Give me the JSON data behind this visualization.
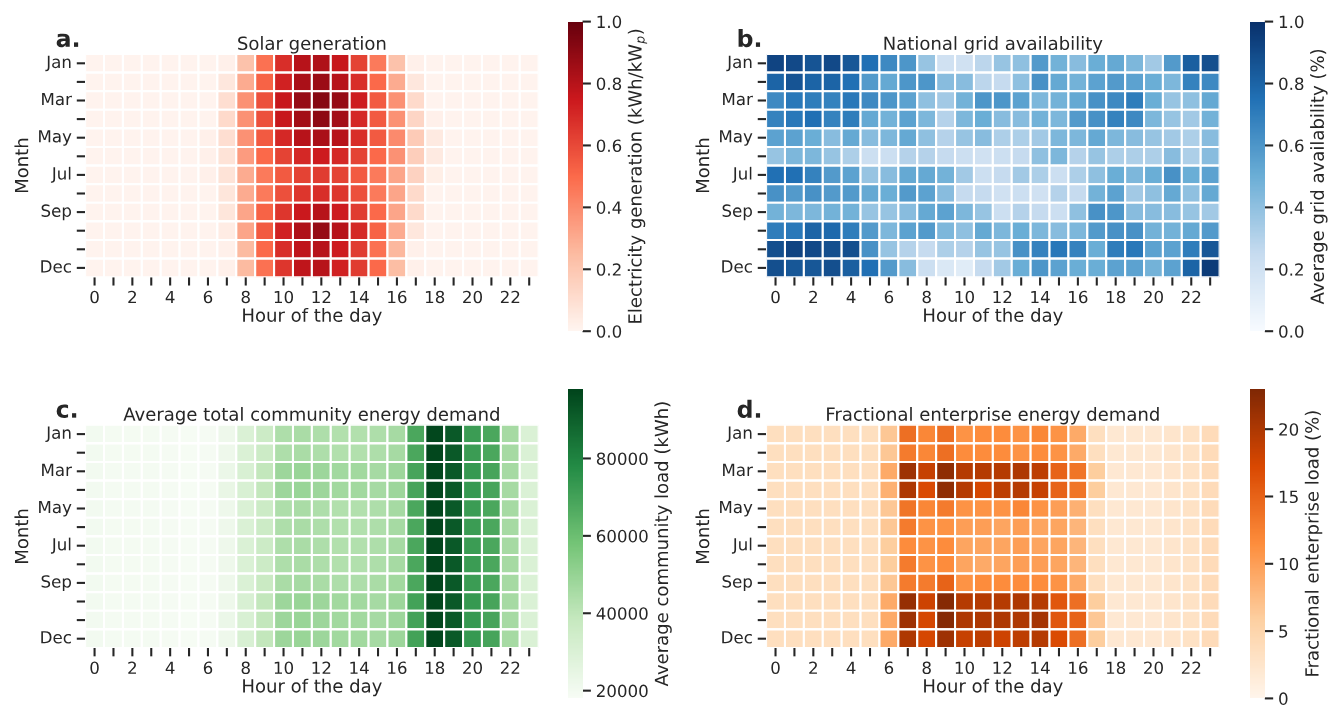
{
  "chart_data": [
    {
      "type": "heatmap",
      "title": "Solar generation",
      "xlabel": "Hour of the day",
      "ylabel": "Month",
      "clabel": "Electricity generation (kWh/kW$_{p}$)",
      "annotations": [
        "a."
      ],
      "categories": [
        "0",
        null,
        "2",
        null,
        "4",
        null,
        "6",
        null,
        "8",
        null,
        "10",
        null,
        "12",
        null,
        "14",
        null,
        "16",
        null,
        "18",
        null,
        "20",
        null,
        "22",
        null
      ],
      "y_categories": [
        "Jan",
        null,
        "Mar",
        null,
        "May",
        null,
        "Jul",
        null,
        "Sep",
        null,
        null,
        "Dec"
      ],
      "colors": [
        "#fff5f0",
        "#fcbba1",
        "#fb6a4a",
        "#cb181d",
        "#67000d"
      ],
      "clim": [
        0,
        1
      ],
      "cticks": [
        {
          "value": 0,
          "label": "0.0"
        },
        {
          "value": 0.2,
          "label": "0.2"
        },
        {
          "value": 0.4,
          "label": "0.4"
        },
        {
          "value": 0.6,
          "label": "0.6"
        },
        {
          "value": 0.8,
          "label": "0.8"
        },
        {
          "value": 1,
          "label": "1.0"
        }
      ],
      "cells": [
        [
          0.01,
          0.01,
          0.01,
          0.01,
          0.01,
          0.01,
          0.01,
          0.02,
          0.22,
          0.48,
          0.68,
          0.8,
          0.82,
          0.76,
          0.62,
          0.45,
          0.22,
          0.02,
          0.01,
          0.01,
          0.01,
          0.01,
          0.01,
          0.01
        ],
        [
          0.01,
          0.01,
          0.01,
          0.01,
          0.01,
          0.01,
          0.01,
          0.06,
          0.3,
          0.52,
          0.72,
          0.83,
          0.87,
          0.8,
          0.68,
          0.5,
          0.3,
          0.06,
          0.01,
          0.01,
          0.01,
          0.01,
          0.01,
          0.01
        ],
        [
          0.01,
          0.01,
          0.01,
          0.01,
          0.01,
          0.01,
          0.01,
          0.1,
          0.38,
          0.58,
          0.76,
          0.88,
          0.92,
          0.88,
          0.74,
          0.55,
          0.38,
          0.12,
          0.01,
          0.01,
          0.01,
          0.01,
          0.01,
          0.01
        ],
        [
          0.01,
          0.01,
          0.01,
          0.01,
          0.01,
          0.01,
          0.01,
          0.12,
          0.38,
          0.58,
          0.76,
          0.85,
          0.9,
          0.85,
          0.7,
          0.55,
          0.38,
          0.14,
          0.02,
          0.01,
          0.01,
          0.01,
          0.01,
          0.01
        ],
        [
          0.01,
          0.01,
          0.01,
          0.01,
          0.01,
          0.01,
          0.02,
          0.1,
          0.38,
          0.55,
          0.7,
          0.8,
          0.83,
          0.8,
          0.68,
          0.55,
          0.4,
          0.18,
          0.05,
          0.01,
          0.01,
          0.01,
          0.01,
          0.01
        ],
        [
          0.01,
          0.01,
          0.01,
          0.01,
          0.01,
          0.01,
          0.02,
          0.08,
          0.35,
          0.5,
          0.62,
          0.7,
          0.74,
          0.7,
          0.62,
          0.5,
          0.38,
          0.17,
          0.05,
          0.01,
          0.01,
          0.01,
          0.01,
          0.01
        ],
        [
          0.01,
          0.01,
          0.01,
          0.01,
          0.01,
          0.01,
          0.02,
          0.08,
          0.3,
          0.45,
          0.55,
          0.62,
          0.64,
          0.62,
          0.55,
          0.45,
          0.32,
          0.15,
          0.03,
          0.01,
          0.01,
          0.01,
          0.01,
          0.01
        ],
        [
          0.01,
          0.01,
          0.01,
          0.01,
          0.01,
          0.01,
          0.01,
          0.07,
          0.3,
          0.45,
          0.58,
          0.66,
          0.68,
          0.66,
          0.58,
          0.45,
          0.32,
          0.12,
          0.01,
          0.01,
          0.01,
          0.01,
          0.01,
          0.01
        ],
        [
          0.01,
          0.01,
          0.01,
          0.01,
          0.01,
          0.01,
          0.01,
          0.07,
          0.32,
          0.52,
          0.66,
          0.75,
          0.8,
          0.74,
          0.64,
          0.5,
          0.32,
          0.12,
          0.01,
          0.01,
          0.01,
          0.01,
          0.01,
          0.01
        ],
        [
          0.01,
          0.01,
          0.01,
          0.01,
          0.01,
          0.01,
          0.01,
          0.04,
          0.32,
          0.55,
          0.72,
          0.82,
          0.88,
          0.8,
          0.7,
          0.52,
          0.3,
          0.06,
          0.01,
          0.01,
          0.01,
          0.01,
          0.01,
          0.01
        ],
        [
          0.01,
          0.01,
          0.01,
          0.01,
          0.01,
          0.01,
          0.01,
          0.02,
          0.25,
          0.5,
          0.68,
          0.78,
          0.8,
          0.74,
          0.64,
          0.48,
          0.26,
          0.02,
          0.01,
          0.01,
          0.01,
          0.01,
          0.01,
          0.01
        ],
        [
          0.01,
          0.01,
          0.01,
          0.01,
          0.01,
          0.01,
          0.01,
          0.02,
          0.25,
          0.48,
          0.66,
          0.78,
          0.8,
          0.72,
          0.64,
          0.5,
          0.24,
          0.02,
          0.01,
          0.01,
          0.01,
          0.01,
          0.01,
          0.01
        ]
      ]
    },
    {
      "type": "heatmap",
      "title": "National grid availability",
      "xlabel": "Hour of the day",
      "ylabel": "Month",
      "clabel": "Average grid availability (%)",
      "annotations": [
        "b."
      ],
      "categories": [
        "0",
        null,
        "2",
        null,
        "4",
        null,
        "6",
        null,
        "8",
        null,
        "10",
        null,
        "12",
        null,
        "14",
        null,
        "16",
        null,
        "18",
        null,
        "20",
        null,
        "22",
        null
      ],
      "y_categories": [
        "Jan",
        null,
        "Mar",
        null,
        "May",
        null,
        "Jul",
        null,
        "Sep",
        null,
        null,
        "Dec"
      ],
      "colors": [
        "#f7fbff",
        "#c6dbef",
        "#6baed6",
        "#2171b5",
        "#08306b"
      ],
      "clim": [
        0,
        1
      ],
      "cticks": [
        {
          "value": 0,
          "label": "0.0"
        },
        {
          "value": 0.2,
          "label": "0.2"
        },
        {
          "value": 0.4,
          "label": "0.4"
        },
        {
          "value": 0.6,
          "label": "0.6"
        },
        {
          "value": 0.8,
          "label": "0.8"
        },
        {
          "value": 1,
          "label": "1.0"
        }
      ],
      "cells": [
        [
          0.92,
          0.9,
          0.86,
          0.9,
          0.85,
          0.75,
          0.65,
          0.6,
          0.38,
          0.2,
          0.2,
          0.28,
          0.38,
          0.4,
          0.58,
          0.48,
          0.42,
          0.5,
          0.52,
          0.45,
          0.35,
          0.58,
          0.82,
          0.88
        ],
        [
          0.8,
          0.86,
          0.8,
          0.8,
          0.75,
          0.58,
          0.52,
          0.6,
          0.6,
          0.42,
          0.42,
          0.28,
          0.25,
          0.4,
          0.62,
          0.52,
          0.48,
          0.55,
          0.58,
          0.55,
          0.5,
          0.45,
          0.68,
          0.65
        ],
        [
          0.65,
          0.72,
          0.7,
          0.68,
          0.72,
          0.65,
          0.6,
          0.55,
          0.4,
          0.35,
          0.48,
          0.6,
          0.6,
          0.55,
          0.45,
          0.48,
          0.52,
          0.62,
          0.65,
          0.7,
          0.5,
          0.38,
          0.4,
          0.52
        ],
        [
          0.68,
          0.72,
          0.75,
          0.68,
          0.7,
          0.52,
          0.48,
          0.55,
          0.45,
          0.3,
          0.45,
          0.5,
          0.42,
          0.42,
          0.48,
          0.45,
          0.58,
          0.62,
          0.68,
          0.65,
          0.45,
          0.38,
          0.35,
          0.48
        ],
        [
          0.55,
          0.55,
          0.5,
          0.42,
          0.52,
          0.42,
          0.45,
          0.52,
          0.4,
          0.3,
          0.38,
          0.42,
          0.32,
          0.32,
          0.35,
          0.45,
          0.45,
          0.52,
          0.45,
          0.42,
          0.38,
          0.35,
          0.32,
          0.42
        ],
        [
          0.38,
          0.45,
          0.45,
          0.38,
          0.32,
          0.22,
          0.22,
          0.3,
          0.3,
          0.25,
          0.22,
          0.2,
          0.22,
          0.25,
          0.4,
          0.45,
          0.3,
          0.38,
          0.32,
          0.32,
          0.32,
          0.42,
          0.32,
          0.42
        ],
        [
          0.75,
          0.75,
          0.68,
          0.58,
          0.55,
          0.38,
          0.42,
          0.52,
          0.52,
          0.48,
          0.35,
          0.22,
          0.25,
          0.35,
          0.32,
          0.22,
          0.32,
          0.4,
          0.5,
          0.45,
          0.5,
          0.62,
          0.5,
          0.55
        ],
        [
          0.62,
          0.58,
          0.62,
          0.58,
          0.58,
          0.52,
          0.5,
          0.58,
          0.55,
          0.42,
          0.25,
          0.25,
          0.2,
          0.22,
          0.2,
          0.3,
          0.25,
          0.48,
          0.55,
          0.35,
          0.4,
          0.52,
          0.4,
          0.52
        ],
        [
          0.48,
          0.45,
          0.45,
          0.48,
          0.48,
          0.38,
          0.38,
          0.42,
          0.52,
          0.55,
          0.45,
          0.38,
          0.22,
          0.3,
          0.25,
          0.22,
          0.4,
          0.62,
          0.6,
          0.42,
          0.42,
          0.42,
          0.38,
          0.35
        ],
        [
          0.7,
          0.72,
          0.8,
          0.78,
          0.7,
          0.58,
          0.45,
          0.55,
          0.58,
          0.45,
          0.4,
          0.52,
          0.45,
          0.5,
          0.45,
          0.42,
          0.45,
          0.58,
          0.62,
          0.62,
          0.48,
          0.48,
          0.52,
          0.58
        ],
        [
          0.88,
          0.92,
          0.9,
          0.88,
          0.88,
          0.62,
          0.38,
          0.3,
          0.25,
          0.32,
          0.3,
          0.38,
          0.38,
          0.62,
          0.68,
          0.72,
          0.68,
          0.5,
          0.7,
          0.72,
          0.55,
          0.55,
          0.7,
          0.85
        ],
        [
          0.88,
          0.85,
          0.85,
          0.88,
          0.82,
          0.75,
          0.58,
          0.42,
          0.22,
          0.15,
          0.12,
          0.25,
          0.35,
          0.5,
          0.6,
          0.55,
          0.5,
          0.5,
          0.55,
          0.55,
          0.48,
          0.55,
          0.8,
          0.95
        ]
      ]
    },
    {
      "type": "heatmap",
      "title": "Average total community energy demand",
      "xlabel": "Hour of the day",
      "ylabel": "Month",
      "clabel": "Average community load (kWh)",
      "annotations": [
        "c."
      ],
      "categories": [
        "0",
        null,
        "2",
        null,
        "4",
        null,
        "6",
        null,
        "8",
        null,
        "10",
        null,
        "12",
        null,
        "14",
        null,
        "16",
        null,
        "18",
        null,
        "20",
        null,
        "22",
        null
      ],
      "y_categories": [
        "Jan",
        null,
        "Mar",
        null,
        "May",
        null,
        "Jul",
        null,
        "Sep",
        null,
        null,
        "Dec"
      ],
      "colors": [
        "#f7fcf5",
        "#c7e9c0",
        "#74c476",
        "#238b45",
        "#00441b"
      ],
      "clim": [
        18000,
        98000
      ],
      "cticks": [
        20000,
        40000,
        60000,
        80000
      ],
      "cells": [
        [
          20000,
          19500,
          19500,
          19500,
          19000,
          18500,
          19000,
          22000,
          30000,
          36000,
          44000,
          45000,
          44000,
          43000,
          43000,
          44000,
          46000,
          68000,
          97000,
          92000,
          72000,
          68000,
          46000,
          30000
        ],
        [
          20000,
          19500,
          19500,
          19500,
          19000,
          18500,
          19000,
          22000,
          30000,
          36000,
          44000,
          45000,
          44000,
          43000,
          43000,
          44000,
          46000,
          68000,
          97000,
          92000,
          72000,
          68000,
          46000,
          30000
        ],
        [
          20000,
          19500,
          19500,
          19500,
          19000,
          18500,
          19000,
          23000,
          31000,
          39000,
          48000,
          49000,
          48000,
          47000,
          47000,
          46000,
          48000,
          69000,
          97000,
          92000,
          73000,
          69000,
          46000,
          30000
        ],
        [
          20000,
          19500,
          19500,
          19500,
          19000,
          18500,
          19000,
          24000,
          31000,
          39000,
          48000,
          49000,
          48000,
          47000,
          47000,
          46000,
          48000,
          69000,
          97000,
          92000,
          73000,
          69000,
          46000,
          30000
        ],
        [
          20000,
          19500,
          19500,
          19500,
          19000,
          18500,
          19000,
          22000,
          30000,
          36000,
          44000,
          45000,
          44000,
          43000,
          43000,
          44000,
          46000,
          68000,
          97000,
          92000,
          72000,
          68000,
          46000,
          30000
        ],
        [
          20000,
          19500,
          19500,
          19500,
          19000,
          18500,
          19000,
          22000,
          30000,
          36000,
          44000,
          45000,
          44000,
          43000,
          43000,
          44000,
          46000,
          68000,
          97000,
          92000,
          72000,
          68000,
          46000,
          30000
        ],
        [
          20000,
          19500,
          19500,
          19500,
          19000,
          18500,
          19000,
          22000,
          30000,
          36000,
          44000,
          45000,
          44000,
          43000,
          43000,
          44000,
          46000,
          68000,
          97000,
          92000,
          72000,
          68000,
          46000,
          30000
        ],
        [
          20000,
          19500,
          19500,
          19500,
          19000,
          18500,
          19000,
          22000,
          30000,
          36000,
          44000,
          45000,
          44000,
          43000,
          43000,
          44000,
          46000,
          68000,
          97000,
          92000,
          72000,
          68000,
          46000,
          30000
        ],
        [
          20000,
          19500,
          19500,
          19500,
          19000,
          18500,
          19000,
          22000,
          30000,
          37000,
          45000,
          46000,
          45000,
          44000,
          44000,
          45000,
          47000,
          68000,
          97000,
          92000,
          72000,
          68000,
          46000,
          30000
        ],
        [
          20000,
          19500,
          19500,
          19500,
          19000,
          18500,
          19000,
          22000,
          31000,
          39000,
          48000,
          49000,
          48000,
          47000,
          47000,
          46000,
          48000,
          70000,
          97000,
          92000,
          73000,
          69000,
          46000,
          30000
        ],
        [
          20000,
          19500,
          19500,
          19500,
          19000,
          18500,
          19000,
          23000,
          31000,
          39000,
          48000,
          49000,
          48000,
          47000,
          47000,
          46000,
          48000,
          70000,
          97000,
          92000,
          73000,
          69000,
          46000,
          30000
        ],
        [
          20000,
          19500,
          19500,
          19500,
          19000,
          18500,
          19000,
          22000,
          31000,
          39000,
          48000,
          49000,
          48000,
          47000,
          47000,
          46000,
          48000,
          70000,
          97000,
          92000,
          73000,
          69000,
          46000,
          30000
        ]
      ]
    },
    {
      "type": "heatmap",
      "title": "Fractional enterprise energy demand",
      "xlabel": "Hour of the day",
      "ylabel": "Month",
      "clabel": "Fractional enterprise load (%)",
      "annotations": [
        "d."
      ],
      "categories": [
        "0",
        null,
        "2",
        null,
        "4",
        null,
        "6",
        null,
        "8",
        null,
        "10",
        null,
        "12",
        null,
        "14",
        null,
        "16",
        null,
        "18",
        null,
        "20",
        null,
        "22",
        null
      ],
      "y_categories": [
        "Jan",
        null,
        "Mar",
        null,
        "May",
        null,
        "Jul",
        null,
        "Sep",
        null,
        null,
        "Dec"
      ],
      "colors": [
        "#fff5eb",
        "#fdd0a2",
        "#fd8d3c",
        "#d94801",
        "#7f2704"
      ],
      "clim": [
        0,
        23
      ],
      "cticks": [
        0,
        5,
        10,
        15,
        20
      ],
      "cells": [
        [
          3.5,
          3.5,
          3.5,
          3.5,
          3.5,
          3.5,
          6.5,
          14,
          12,
          14,
          11,
          11.5,
          11.5,
          11,
          12,
          11,
          9,
          3.5,
          2,
          2,
          2,
          2.5,
          3,
          4
        ],
        [
          3.5,
          3.5,
          3.5,
          3.5,
          3.5,
          3.5,
          6.5,
          13,
          12,
          14,
          11.5,
          11.5,
          11.5,
          11,
          11.5,
          11,
          9,
          3.5,
          2,
          2,
          2,
          2.5,
          3,
          4
        ],
        [
          3.5,
          3.5,
          3.5,
          3.5,
          3.5,
          3.5,
          9,
          21,
          18.5,
          22,
          19.5,
          19.5,
          19.5,
          20,
          19,
          15,
          13.5,
          6,
          2,
          2,
          2,
          2.5,
          3,
          4
        ],
        [
          3.5,
          3.5,
          3.5,
          3.5,
          3.5,
          3.5,
          8.5,
          20,
          17,
          22,
          19.5,
          17.5,
          19,
          19.5,
          18.5,
          15,
          13.5,
          6,
          2,
          2,
          2,
          2.5,
          3,
          4
        ],
        [
          3.5,
          3.5,
          3.5,
          3.5,
          3.5,
          3.5,
          6.5,
          13.5,
          12,
          13,
          11,
          11,
          11,
          12,
          11,
          10,
          8.5,
          3.5,
          2,
          2,
          2,
          2.5,
          3,
          4
        ],
        [
          3.5,
          3.5,
          3.5,
          3.5,
          3.5,
          3.5,
          6.5,
          13,
          11,
          11,
          10,
          10,
          9.5,
          10,
          9.5,
          9.5,
          8,
          3.5,
          2,
          2,
          2,
          2.5,
          3,
          4
        ],
        [
          3.5,
          3.5,
          3.5,
          3.5,
          3.5,
          3.5,
          6,
          11.5,
          11,
          11.5,
          9.5,
          9.5,
          9.5,
          10,
          9.5,
          9.5,
          8,
          3.5,
          2,
          2,
          2,
          2.5,
          3,
          4
        ],
        [
          3.5,
          3.5,
          3.5,
          3.5,
          3.5,
          3.5,
          6,
          13,
          11,
          11.5,
          9.5,
          9,
          9.5,
          10,
          10,
          9.5,
          8,
          3.5,
          2,
          2,
          2,
          2.5,
          3,
          4
        ],
        [
          3.5,
          3.5,
          3.5,
          3.5,
          3.5,
          3.5,
          6.5,
          13,
          13,
          15,
          11,
          11.5,
          11.5,
          11.5,
          11.5,
          11,
          9,
          3.5,
          2,
          2,
          2,
          2.5,
          3,
          4
        ],
        [
          3.5,
          3.5,
          3.5,
          3.5,
          3.5,
          3.5,
          9,
          21.5,
          18,
          22.5,
          19.5,
          19.5,
          19.5,
          20,
          19.5,
          16,
          14,
          6,
          2,
          2,
          2,
          2.5,
          3,
          4
        ],
        [
          3.5,
          3.5,
          3.5,
          3.5,
          3.5,
          3.5,
          9,
          21,
          17.5,
          22.5,
          20,
          20,
          20,
          20,
          20.5,
          16,
          15,
          6.5,
          2,
          2,
          2,
          2.5,
          3,
          4
        ],
        [
          3.5,
          3.5,
          3.5,
          3.5,
          3.5,
          3.5,
          9,
          20,
          17.5,
          21,
          18.5,
          19,
          18,
          19,
          19.5,
          17,
          14,
          6,
          2,
          2,
          2,
          2.5,
          3,
          4
        ]
      ]
    }
  ]
}
